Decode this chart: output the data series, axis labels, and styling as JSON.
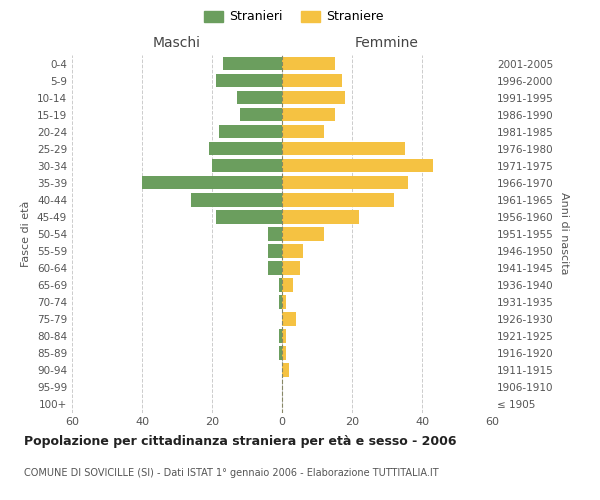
{
  "age_groups": [
    "0-4",
    "5-9",
    "10-14",
    "15-19",
    "20-24",
    "25-29",
    "30-34",
    "35-39",
    "40-44",
    "45-49",
    "50-54",
    "55-59",
    "60-64",
    "65-69",
    "70-74",
    "75-79",
    "80-84",
    "85-89",
    "90-94",
    "95-99",
    "100+"
  ],
  "birth_years": [
    "2001-2005",
    "1996-2000",
    "1991-1995",
    "1986-1990",
    "1981-1985",
    "1976-1980",
    "1971-1975",
    "1966-1970",
    "1961-1965",
    "1956-1960",
    "1951-1955",
    "1946-1950",
    "1941-1945",
    "1936-1940",
    "1931-1935",
    "1926-1930",
    "1921-1925",
    "1916-1920",
    "1911-1915",
    "1906-1910",
    "≤ 1905"
  ],
  "maschi": [
    17,
    19,
    13,
    12,
    18,
    21,
    20,
    40,
    26,
    19,
    4,
    4,
    4,
    1,
    1,
    0,
    1,
    1,
    0,
    0,
    0
  ],
  "femmine": [
    15,
    17,
    18,
    15,
    12,
    35,
    43,
    36,
    32,
    22,
    12,
    6,
    5,
    3,
    1,
    4,
    1,
    1,
    2,
    0,
    0
  ],
  "color_maschi": "#6b9e5e",
  "color_femmine": "#f5c242",
  "title": "Popolazione per cittadinanza straniera per età e sesso - 2006",
  "subtitle": "COMUNE DI SOVICILLE (SI) - Dati ISTAT 1° gennaio 2006 - Elaborazione TUTTITALIA.IT",
  "xlabel_left": "Maschi",
  "xlabel_right": "Femmine",
  "ylabel_left": "Fasce di età",
  "ylabel_right": "Anni di nascita",
  "xlim": 60,
  "legend_stranieri": "Stranieri",
  "legend_straniere": "Straniere",
  "background_color": "#ffffff",
  "grid_color": "#cccccc"
}
